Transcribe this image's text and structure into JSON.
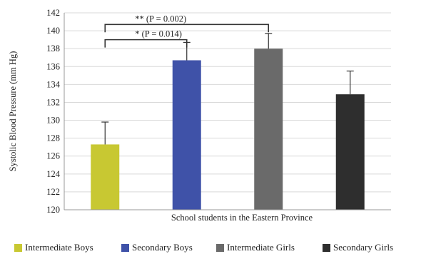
{
  "chart_data": {
    "type": "bar",
    "categories": [
      "Intermediate Boys",
      "Secondary Boys",
      "Intermediate Girls",
      "Secondary Girls"
    ],
    "values": [
      127.3,
      136.7,
      138.0,
      132.9
    ],
    "error_upper": [
      129.8,
      138.7,
      139.7,
      135.5
    ],
    "colors": [
      "#c8c832",
      "#3f52a8",
      "#6a6a6a",
      "#2e2e2e"
    ],
    "xlabel": "School students in the Eastern Province",
    "ylabel": "Systolic Blood Pressure (mm Hg)",
    "ylim": [
      120,
      142
    ],
    "yticks": [
      120,
      122,
      124,
      126,
      128,
      130,
      132,
      134,
      136,
      138,
      140,
      142
    ],
    "grid": "horizontal",
    "legend_position": "bottom",
    "annotations": [
      {
        "text": "* (P = 0.014)",
        "from_category": 0,
        "to_category": 1,
        "y": 139.0
      },
      {
        "text": "** (P = 0.002)",
        "from_category": 0,
        "to_category": 2,
        "y": 140.7
      }
    ]
  }
}
